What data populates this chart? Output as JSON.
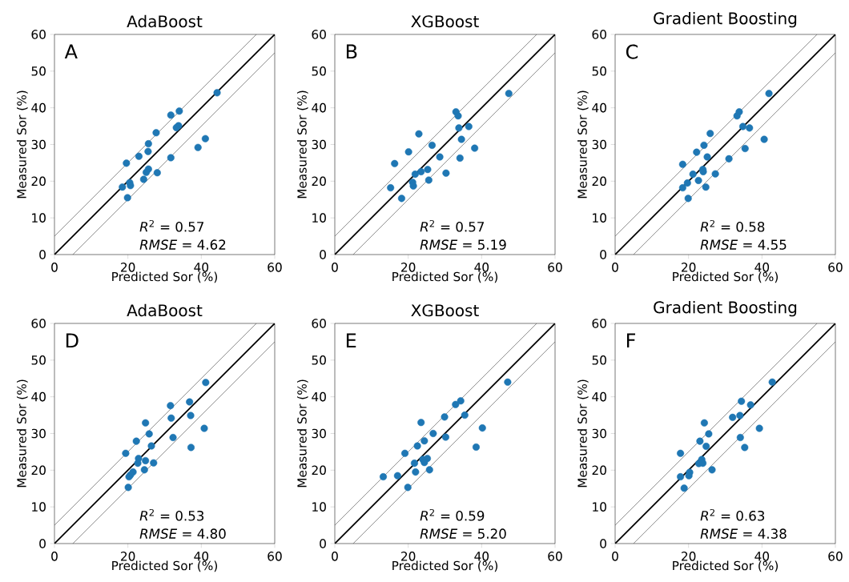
{
  "chart_data": [
    {
      "type": "scatter",
      "title": "AdaBoost",
      "xlabel": "Predicted Sor (%)",
      "ylabel": "Measured Sor (%)",
      "xlim": [
        0,
        60
      ],
      "ylim": [
        0,
        60
      ],
      "xticks": [
        0,
        20,
        40,
        60
      ],
      "yticks": [
        0,
        10,
        20,
        30,
        40,
        50,
        60
      ],
      "annotations": [
        "A",
        "*R*$^{2}$ = 0.57",
        "*RMSE* = 4.62"
      ],
      "series": [
        {
          "type": "scatter",
          "color": "#1f77b4",
          "marker": "circle",
          "x": [
            44.3,
            34.0,
            31.7,
            33.8,
            33.2,
            27.7,
            41.1,
            39.1,
            25.6,
            25.5,
            23.0,
            31.7,
            19.6,
            25.6,
            25.0,
            28.0,
            24.3,
            20.5,
            20.7,
            18.5,
            19.9
          ],
          "values": [
            44.1,
            39.1,
            38.0,
            35.1,
            34.6,
            33.2,
            31.6,
            29.2,
            30.2,
            28.1,
            26.8,
            26.4,
            24.9,
            23.3,
            22.4,
            22.3,
            20.5,
            19.6,
            18.8,
            18.4,
            15.5
          ]
        },
        {
          "type": "line",
          "color": "#000000",
          "marker": "none",
          "x": [
            0,
            60
          ],
          "values": [
            0,
            60
          ]
        },
        {
          "type": "line",
          "color": "#555555",
          "marker": "none",
          "x": [
            0,
            55
          ],
          "values": [
            5,
            60
          ]
        },
        {
          "type": "line",
          "color": "#555555",
          "marker": "none",
          "x": [
            5,
            60
          ],
          "values": [
            0,
            55
          ]
        }
      ]
    },
    {
      "type": "scatter",
      "title": "XGBoost",
      "xlabel": "Predicted Sor (%)",
      "ylabel": "Measured Sor (%)",
      "xlim": [
        0,
        60
      ],
      "ylim": [
        0,
        60
      ],
      "xticks": [
        0,
        20,
        40,
        60
      ],
      "yticks": [
        0,
        10,
        20,
        30,
        40,
        50,
        60
      ],
      "annotations": [
        "B",
        "*R*$^{2}$ = 0.57",
        "*RMSE* = 5.19"
      ],
      "series": [
        {
          "type": "scatter",
          "color": "#1f77b4",
          "marker": "circle",
          "x": [
            47.4,
            33.0,
            33.6,
            33.8,
            36.5,
            34.5,
            38.1,
            22.9,
            26.5,
            20.1,
            28.6,
            34.1,
            16.3,
            25.3,
            23.5,
            21.9,
            30.3,
            25.6,
            21.2,
            21.4,
            15.2,
            18.2
          ],
          "values": [
            43.9,
            38.9,
            37.8,
            34.5,
            34.9,
            31.4,
            29.0,
            32.9,
            29.8,
            28.0,
            26.6,
            26.3,
            24.8,
            23.2,
            22.6,
            21.9,
            22.2,
            20.3,
            19.7,
            18.7,
            18.2,
            15.3
          ]
        },
        {
          "type": "line",
          "color": "#000000",
          "marker": "none",
          "x": [
            0,
            60
          ],
          "values": [
            0,
            60
          ]
        },
        {
          "type": "line",
          "color": "#555555",
          "marker": "none",
          "x": [
            0,
            55
          ],
          "values": [
            5,
            60
          ]
        },
        {
          "type": "line",
          "color": "#555555",
          "marker": "none",
          "x": [
            5,
            60
          ],
          "values": [
            0,
            55
          ]
        }
      ]
    },
    {
      "type": "scatter",
      "title": "Gradient Boosting",
      "xlabel": "Predicted Sor (%)",
      "ylabel": "Measured Sor (%)",
      "xlim": [
        0,
        60
      ],
      "ylim": [
        0,
        60
      ],
      "xticks": [
        0,
        20,
        40,
        60
      ],
      "yticks": [
        0,
        10,
        20,
        30,
        40,
        50,
        60
      ],
      "annotations": [
        "C",
        "*R*$^{2}$ = 0.58",
        "*RMSE* = 4.55"
      ],
      "series": [
        {
          "type": "scatter",
          "color": "#1f77b4",
          "marker": "circle",
          "x": [
            41.9,
            33.8,
            33.2,
            34.8,
            36.6,
            25.9,
            40.6,
            35.4,
            24.2,
            22.2,
            25.1,
            31.0,
            18.4,
            23.9,
            24.0,
            27.3,
            21.2,
            22.7,
            19.7,
            24.7,
            18.4,
            19.9
          ],
          "values": [
            43.9,
            38.9,
            37.8,
            34.9,
            34.5,
            33.0,
            31.4,
            28.9,
            29.8,
            27.9,
            26.6,
            26.1,
            24.6,
            23.2,
            22.6,
            22.0,
            21.9,
            20.2,
            19.5,
            18.4,
            18.2,
            15.3
          ]
        },
        {
          "type": "line",
          "color": "#000000",
          "marker": "none",
          "x": [
            0,
            60
          ],
          "values": [
            0,
            60
          ]
        },
        {
          "type": "line",
          "color": "#555555",
          "marker": "none",
          "x": [
            0,
            55
          ],
          "values": [
            5,
            60
          ]
        },
        {
          "type": "line",
          "color": "#555555",
          "marker": "none",
          "x": [
            5,
            60
          ],
          "values": [
            0,
            55
          ]
        }
      ]
    },
    {
      "type": "scatter",
      "title": "AdaBoost",
      "xlabel": "Predicted Sor (%)",
      "ylabel": "Measured Sor (%)",
      "xlim": [
        0,
        60
      ],
      "ylim": [
        0,
        60
      ],
      "xticks": [
        0,
        20,
        40,
        60
      ],
      "yticks": [
        0,
        10,
        20,
        30,
        40,
        50,
        60
      ],
      "annotations": [
        "D",
        "*R*$^{2}$ = 0.53",
        "*RMSE* = 4.80"
      ],
      "series": [
        {
          "type": "scatter",
          "color": "#1f77b4",
          "marker": "circle",
          "x": [
            41.2,
            36.8,
            31.6,
            37.1,
            31.8,
            24.8,
            40.8,
            32.3,
            25.8,
            22.3,
            26.4,
            37.2,
            19.4,
            22.9,
            24.8,
            27.0,
            22.7,
            24.5,
            21.4,
            20.7,
            20.3,
            20.1
          ],
          "values": [
            43.9,
            38.6,
            37.6,
            34.9,
            34.2,
            32.9,
            31.4,
            28.9,
            29.9,
            27.9,
            26.6,
            26.2,
            24.6,
            23.2,
            22.6,
            22.0,
            21.9,
            20.1,
            19.5,
            18.7,
            18.2,
            15.3
          ]
        },
        {
          "type": "line",
          "color": "#000000",
          "marker": "none",
          "x": [
            0,
            60
          ],
          "values": [
            0,
            60
          ]
        },
        {
          "type": "line",
          "color": "#555555",
          "marker": "none",
          "x": [
            0,
            55
          ],
          "values": [
            5,
            60
          ]
        },
        {
          "type": "line",
          "color": "#555555",
          "marker": "none",
          "x": [
            5,
            60
          ],
          "values": [
            0,
            55
          ]
        }
      ]
    },
    {
      "type": "scatter",
      "title": "XGBoost",
      "xlabel": "Predicted Sor (%)",
      "ylabel": "Measured Sor (%)",
      "xlim": [
        0,
        60
      ],
      "ylim": [
        0,
        60
      ],
      "xticks": [
        0,
        20,
        40,
        60
      ],
      "yticks": [
        0,
        10,
        20,
        30,
        40,
        50,
        60
      ],
      "annotations": [
        "E",
        "*R*$^{2}$ = 0.59",
        "*RMSE* = 5.20"
      ],
      "series": [
        {
          "type": "scatter",
          "color": "#1f77b4",
          "marker": "circle",
          "x": [
            47.1,
            34.3,
            32.9,
            35.4,
            29.9,
            23.5,
            40.2,
            26.8,
            30.2,
            24.4,
            22.5,
            38.5,
            19.1,
            25.2,
            21.7,
            24.0,
            24.4,
            25.8,
            22.0,
            17.1,
            13.2,
            19.9
          ],
          "values": [
            44.0,
            38.9,
            37.9,
            35.0,
            34.5,
            33.0,
            31.5,
            30.0,
            29.0,
            28.0,
            26.6,
            26.3,
            24.6,
            23.2,
            21.9,
            22.9,
            22.1,
            20.1,
            19.5,
            18.5,
            18.2,
            15.3
          ]
        },
        {
          "type": "line",
          "color": "#000000",
          "marker": "none",
          "x": [
            0,
            60
          ],
          "values": [
            0,
            60
          ]
        },
        {
          "type": "line",
          "color": "#555555",
          "marker": "none",
          "x": [
            0,
            55
          ],
          "values": [
            5,
            60
          ]
        },
        {
          "type": "line",
          "color": "#555555",
          "marker": "none",
          "x": [
            5,
            60
          ],
          "values": [
            0,
            55
          ]
        }
      ]
    },
    {
      "type": "scatter",
      "title": "Gradient Boosting",
      "xlabel": "Predicted Sor (%)",
      "ylabel": "Measured Sor (%)",
      "xlim": [
        0,
        60
      ],
      "ylim": [
        0,
        60
      ],
      "xticks": [
        0,
        20,
        40,
        60
      ],
      "yticks": [
        0,
        10,
        20,
        30,
        40,
        50,
        60
      ],
      "annotations": [
        "F",
        "*R*$^{2}$ = 0.63",
        "*RMSE* = 4.38"
      ],
      "series": [
        {
          "type": "scatter",
          "color": "#1f77b4",
          "marker": "circle",
          "x": [
            42.8,
            34.4,
            36.9,
            32.0,
            34.0,
            24.3,
            39.3,
            34.1,
            25.5,
            23.1,
            24.8,
            35.3,
            17.8,
            23.6,
            22.8,
            23.9,
            26.4,
            20.3,
            20.1,
            17.8,
            18.8
          ],
          "values": [
            44.0,
            38.8,
            37.8,
            34.4,
            34.9,
            32.9,
            31.4,
            28.9,
            29.9,
            27.9,
            26.5,
            26.2,
            24.6,
            22.9,
            21.8,
            21.9,
            20.1,
            19.4,
            18.5,
            18.2,
            15.1
          ]
        },
        {
          "type": "line",
          "color": "#000000",
          "marker": "none",
          "x": [
            0,
            60
          ],
          "values": [
            0,
            60
          ]
        },
        {
          "type": "line",
          "color": "#555555",
          "marker": "none",
          "x": [
            0,
            55
          ],
          "values": [
            5,
            60
          ]
        },
        {
          "type": "line",
          "color": "#555555",
          "marker": "none",
          "x": [
            5,
            60
          ],
          "values": [
            0,
            55
          ]
        }
      ]
    }
  ]
}
